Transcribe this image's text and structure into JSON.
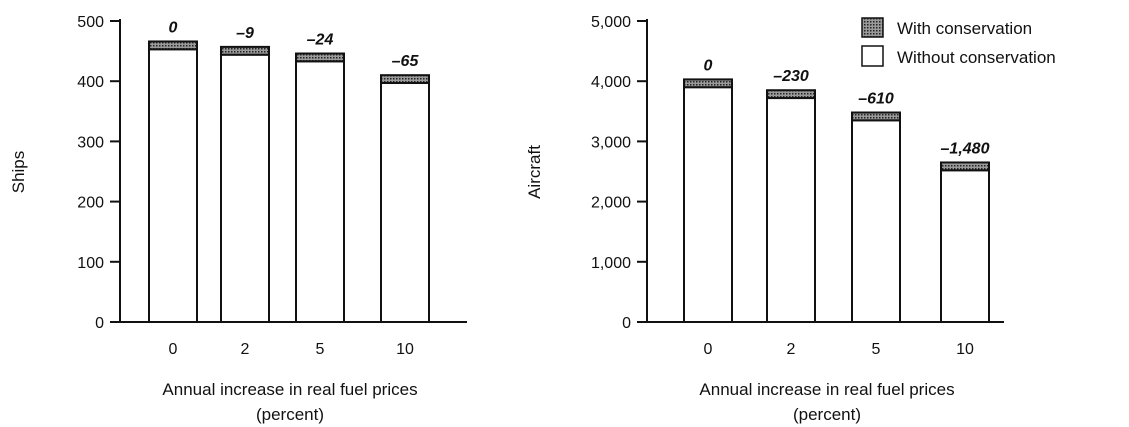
{
  "colors": {
    "axis": "#111111",
    "bar_fill": "#ffffff",
    "conservation_fill": "#777777"
  },
  "legend": {
    "with_label": "With conservation",
    "without_label": "Without conservation"
  },
  "chart_data": [
    {
      "type": "bar",
      "stacked": true,
      "categories": [
        "0",
        "2",
        "5",
        "10"
      ],
      "series": [
        {
          "name": "Without conservation",
          "values": [
            453,
            444,
            433,
            397
          ]
        },
        {
          "name": "With conservation",
          "values": [
            13,
            13,
            13,
            13
          ]
        }
      ],
      "data_labels": [
        "0",
        "–9",
        "–24",
        "–65"
      ],
      "xlabel": [
        "Annual increase in real fuel prices",
        "(percent)"
      ],
      "ylabel": "Ships",
      "ylim": [
        0,
        500
      ],
      "yticks": [
        0,
        100,
        200,
        300,
        400,
        500
      ],
      "ytick_labels": [
        "0",
        "100",
        "200",
        "300",
        "400",
        "500"
      ],
      "grid": false,
      "legend": "none"
    },
    {
      "type": "bar",
      "stacked": true,
      "categories": [
        "0",
        "2",
        "5",
        "10"
      ],
      "series": [
        {
          "name": "Without conservation",
          "values": [
            3900,
            3720,
            3350,
            2520
          ]
        },
        {
          "name": "With conservation",
          "values": [
            130,
            130,
            130,
            130
          ]
        }
      ],
      "data_labels": [
        "0",
        "–230",
        "–610",
        "–1,480"
      ],
      "xlabel": [
        "Annual increase in real fuel prices",
        "(percent)"
      ],
      "ylabel": "Aircraft",
      "ylim": [
        0,
        5000
      ],
      "yticks": [
        0,
        1000,
        2000,
        3000,
        4000,
        5000
      ],
      "ytick_labels": [
        "0",
        "1,000",
        "2,000",
        "3,000",
        "4,000",
        "5,000"
      ],
      "grid": false,
      "legend": "top-right"
    }
  ]
}
